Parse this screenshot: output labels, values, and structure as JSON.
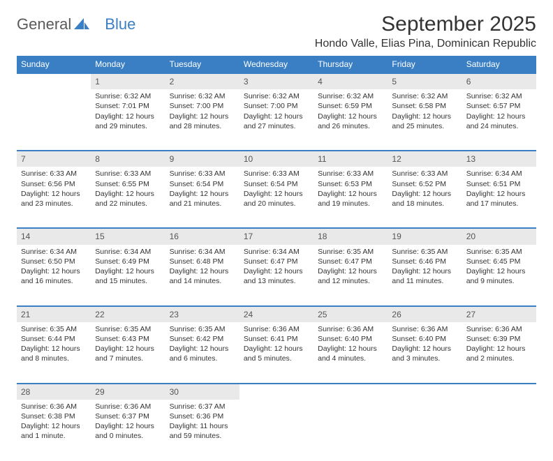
{
  "logo": {
    "text1": "General",
    "text2": "Blue"
  },
  "title": "September 2025",
  "location": "Hondo Valle, Elias Pina, Dominican Republic",
  "weekdays": [
    "Sunday",
    "Monday",
    "Tuesday",
    "Wednesday",
    "Thursday",
    "Friday",
    "Saturday"
  ],
  "colors": {
    "header_bg": "#3a7fc4",
    "header_text": "#ffffff",
    "daynum_bg": "#e9e9e9",
    "border_top": "#3a7fc4",
    "body_text": "#333333"
  },
  "typography": {
    "title_fontsize": 30,
    "location_fontsize": 16,
    "weekday_fontsize": 12,
    "daynum_fontsize": 12,
    "cell_fontsize": 10.5
  },
  "weeks": [
    [
      null,
      {
        "n": "1",
        "sr": "Sunrise: 6:32 AM",
        "ss": "Sunset: 7:01 PM",
        "dl": "Daylight: 12 hours and 29 minutes."
      },
      {
        "n": "2",
        "sr": "Sunrise: 6:32 AM",
        "ss": "Sunset: 7:00 PM",
        "dl": "Daylight: 12 hours and 28 minutes."
      },
      {
        "n": "3",
        "sr": "Sunrise: 6:32 AM",
        "ss": "Sunset: 7:00 PM",
        "dl": "Daylight: 12 hours and 27 minutes."
      },
      {
        "n": "4",
        "sr": "Sunrise: 6:32 AM",
        "ss": "Sunset: 6:59 PM",
        "dl": "Daylight: 12 hours and 26 minutes."
      },
      {
        "n": "5",
        "sr": "Sunrise: 6:32 AM",
        "ss": "Sunset: 6:58 PM",
        "dl": "Daylight: 12 hours and 25 minutes."
      },
      {
        "n": "6",
        "sr": "Sunrise: 6:32 AM",
        "ss": "Sunset: 6:57 PM",
        "dl": "Daylight: 12 hours and 24 minutes."
      }
    ],
    [
      {
        "n": "7",
        "sr": "Sunrise: 6:33 AM",
        "ss": "Sunset: 6:56 PM",
        "dl": "Daylight: 12 hours and 23 minutes."
      },
      {
        "n": "8",
        "sr": "Sunrise: 6:33 AM",
        "ss": "Sunset: 6:55 PM",
        "dl": "Daylight: 12 hours and 22 minutes."
      },
      {
        "n": "9",
        "sr": "Sunrise: 6:33 AM",
        "ss": "Sunset: 6:54 PM",
        "dl": "Daylight: 12 hours and 21 minutes."
      },
      {
        "n": "10",
        "sr": "Sunrise: 6:33 AM",
        "ss": "Sunset: 6:54 PM",
        "dl": "Daylight: 12 hours and 20 minutes."
      },
      {
        "n": "11",
        "sr": "Sunrise: 6:33 AM",
        "ss": "Sunset: 6:53 PM",
        "dl": "Daylight: 12 hours and 19 minutes."
      },
      {
        "n": "12",
        "sr": "Sunrise: 6:33 AM",
        "ss": "Sunset: 6:52 PM",
        "dl": "Daylight: 12 hours and 18 minutes."
      },
      {
        "n": "13",
        "sr": "Sunrise: 6:34 AM",
        "ss": "Sunset: 6:51 PM",
        "dl": "Daylight: 12 hours and 17 minutes."
      }
    ],
    [
      {
        "n": "14",
        "sr": "Sunrise: 6:34 AM",
        "ss": "Sunset: 6:50 PM",
        "dl": "Daylight: 12 hours and 16 minutes."
      },
      {
        "n": "15",
        "sr": "Sunrise: 6:34 AM",
        "ss": "Sunset: 6:49 PM",
        "dl": "Daylight: 12 hours and 15 minutes."
      },
      {
        "n": "16",
        "sr": "Sunrise: 6:34 AM",
        "ss": "Sunset: 6:48 PM",
        "dl": "Daylight: 12 hours and 14 minutes."
      },
      {
        "n": "17",
        "sr": "Sunrise: 6:34 AM",
        "ss": "Sunset: 6:47 PM",
        "dl": "Daylight: 12 hours and 13 minutes."
      },
      {
        "n": "18",
        "sr": "Sunrise: 6:35 AM",
        "ss": "Sunset: 6:47 PM",
        "dl": "Daylight: 12 hours and 12 minutes."
      },
      {
        "n": "19",
        "sr": "Sunrise: 6:35 AM",
        "ss": "Sunset: 6:46 PM",
        "dl": "Daylight: 12 hours and 11 minutes."
      },
      {
        "n": "20",
        "sr": "Sunrise: 6:35 AM",
        "ss": "Sunset: 6:45 PM",
        "dl": "Daylight: 12 hours and 9 minutes."
      }
    ],
    [
      {
        "n": "21",
        "sr": "Sunrise: 6:35 AM",
        "ss": "Sunset: 6:44 PM",
        "dl": "Daylight: 12 hours and 8 minutes."
      },
      {
        "n": "22",
        "sr": "Sunrise: 6:35 AM",
        "ss": "Sunset: 6:43 PM",
        "dl": "Daylight: 12 hours and 7 minutes."
      },
      {
        "n": "23",
        "sr": "Sunrise: 6:35 AM",
        "ss": "Sunset: 6:42 PM",
        "dl": "Daylight: 12 hours and 6 minutes."
      },
      {
        "n": "24",
        "sr": "Sunrise: 6:36 AM",
        "ss": "Sunset: 6:41 PM",
        "dl": "Daylight: 12 hours and 5 minutes."
      },
      {
        "n": "25",
        "sr": "Sunrise: 6:36 AM",
        "ss": "Sunset: 6:40 PM",
        "dl": "Daylight: 12 hours and 4 minutes."
      },
      {
        "n": "26",
        "sr": "Sunrise: 6:36 AM",
        "ss": "Sunset: 6:40 PM",
        "dl": "Daylight: 12 hours and 3 minutes."
      },
      {
        "n": "27",
        "sr": "Sunrise: 6:36 AM",
        "ss": "Sunset: 6:39 PM",
        "dl": "Daylight: 12 hours and 2 minutes."
      }
    ],
    [
      {
        "n": "28",
        "sr": "Sunrise: 6:36 AM",
        "ss": "Sunset: 6:38 PM",
        "dl": "Daylight: 12 hours and 1 minute."
      },
      {
        "n": "29",
        "sr": "Sunrise: 6:36 AM",
        "ss": "Sunset: 6:37 PM",
        "dl": "Daylight: 12 hours and 0 minutes."
      },
      {
        "n": "30",
        "sr": "Sunrise: 6:37 AM",
        "ss": "Sunset: 6:36 PM",
        "dl": "Daylight: 11 hours and 59 minutes."
      },
      null,
      null,
      null,
      null
    ]
  ]
}
